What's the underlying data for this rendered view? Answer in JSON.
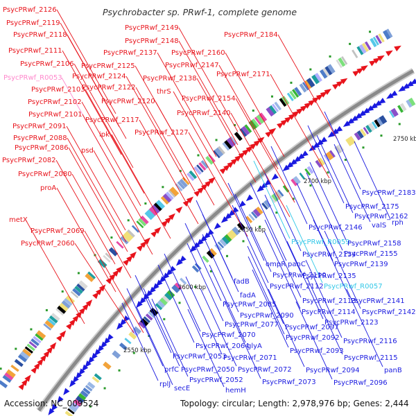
{
  "title": "Psychrobacter sp. PRwf-1, complete genome",
  "footer": {
    "accession": "Accession: NC_009524",
    "stats": "Topology: circular; Length: 2,978,976 bp; Genes: 2,444"
  },
  "colors": {
    "forward": "#e8141c",
    "reverse": "#1a1ae0",
    "rna": "#ff88cc",
    "rna_reverse": "#33c8e8",
    "backbone": "#8a8a8a",
    "leader_forward": "#ff2020",
    "leader_reverse": "#2020e0"
  },
  "kbp_labels": [
    "2550 kbp",
    "2600 kbp",
    "2650 kbp",
    "2700 kbp",
    "2750 kbp"
  ],
  "forward_labels": [
    "PsycPRwf_2126",
    "PsycPRwf_2119",
    "PsycPRwf_2118",
    "PsycPRwf_2111",
    "PsycPRwf_2106",
    "PsycPRwf_R0053",
    "PsycPRwf_2103",
    "PsycPRwf_2102",
    "PsycPRwf_2101",
    "PsycPRwf_2091",
    "PsycPRwf_2088",
    "PsycPRwf_2086",
    "PsycPRwf_2082",
    "PsycPRwf_2080",
    "proA",
    "metX",
    "PsycPRwf_2069",
    "PsycPRwf_2060",
    "PsycPRwf_2149",
    "PsycPRwf_2148",
    "PsycPRwf_2137",
    "PsycPRwf_2125",
    "PsycPRwf_2124",
    "PsycPRwf_2122",
    "PsycPRwf_2120",
    "PsycPRwf_2117",
    "ipk",
    "psd",
    "PsycPRwf_2184",
    "PsycPRwf_2160",
    "PsycPRwf_2147",
    "PsycPRwf_2138",
    "PsycPRwf_2171",
    "thrS",
    "PsycPRwf_2154",
    "PsycPRwf_2140",
    "PsycPRwf_2127"
  ],
  "reverse_labels": [
    "PsycPRwf_2183",
    "PsycPRwf_2175",
    "PsycPRwf_2162",
    "valS",
    "rph",
    "PsycPRwf_2146",
    "PsycPRwf_R0059",
    "PsycPRwf_2158",
    "PsycPRwf_2134",
    "PsycPRwf_2155",
    "ompR",
    "panC",
    "PsycPRwf_2139",
    "PsycPRwf_2110",
    "PsycPRwf_2135",
    "fadB",
    "PsycPRwf_2112",
    "PsycPRwf_R0057",
    "fadA",
    "PsycPRwf_2113",
    "PsycPRwf_2141",
    "PsycPRwf_2085",
    "PsycPRwf_2114",
    "PsycPRwf_2142",
    "PsycPRwf_2090",
    "PsycPRwf_2123",
    "PsycPRwf_2077",
    "PsycPRwf_2097",
    "PsycPRwf_2070",
    "PsycPRwf_2092",
    "PsycPRwf_2116",
    "PsycPRwf_2064",
    "glyA",
    "PsycPRwf_2093",
    "PsycPRwf_2053",
    "PsycPRwf_2071",
    "PsycPRwf_2115",
    "prfC",
    "PsycPRwf_2050",
    "PsycPRwf_2072",
    "PsycPRwf_2094",
    "panB",
    "PsycPRwf_2052",
    "PsycPRwf_2073",
    "PsycPRwf_2096",
    "rplJ",
    "secE",
    "hemH"
  ]
}
